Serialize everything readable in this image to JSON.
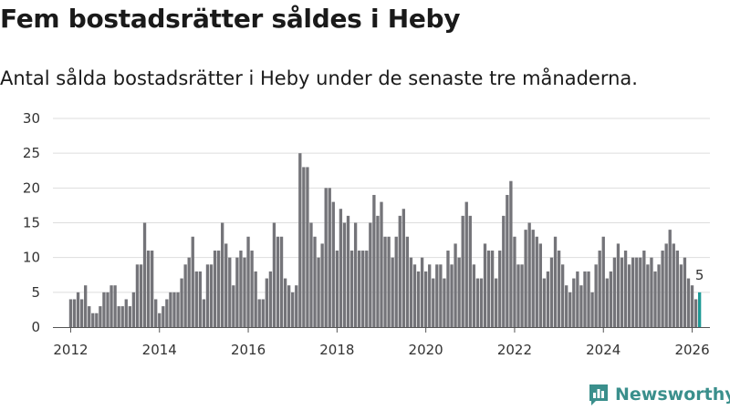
{
  "header": {
    "title": "Fem bostadsrätter såldes i Heby",
    "subtitle": "Antal sålda bostadsrätter i Heby under de senaste tre månaderna."
  },
  "brand": {
    "name": "Newsworthy",
    "icon": "newsworthy-logo-icon",
    "color": "#3a8f8c"
  },
  "colors": {
    "bar": "#747479",
    "highlight": "#1f9a96",
    "grid": "#dddddd",
    "axis": "#555555"
  },
  "chart_data": {
    "type": "bar",
    "title": "Fem bostadsrätter såldes i Heby",
    "xlabel": "",
    "ylabel": "",
    "ylim": [
      0,
      30
    ],
    "yticks": [
      0,
      5,
      10,
      15,
      20,
      25,
      30
    ],
    "xlim": [
      2011.6,
      2026.4
    ],
    "xticks": [
      2012,
      2014,
      2016,
      2018,
      2020,
      2022,
      2024,
      2026
    ],
    "grid": true,
    "x_start": "2012-01",
    "x_step": "month",
    "highlight_last": true,
    "last_value_label": "5",
    "values": [
      4,
      4,
      5,
      4,
      6,
      3,
      2,
      2,
      3,
      5,
      5,
      6,
      6,
      3,
      3,
      4,
      3,
      5,
      9,
      9,
      15,
      11,
      11,
      4,
      2,
      3,
      4,
      5,
      5,
      5,
      7,
      9,
      10,
      13,
      8,
      8,
      4,
      9,
      9,
      11,
      11,
      15,
      12,
      10,
      6,
      10,
      11,
      10,
      13,
      11,
      8,
      4,
      4,
      7,
      8,
      15,
      13,
      13,
      7,
      6,
      5,
      6,
      25,
      23,
      23,
      15,
      13,
      10,
      12,
      20,
      20,
      18,
      11,
      17,
      15,
      16,
      11,
      15,
      11,
      11,
      11,
      15,
      19,
      16,
      18,
      13,
      13,
      10,
      13,
      16,
      17,
      13,
      10,
      9,
      8,
      10,
      8,
      9,
      7,
      9,
      9,
      7,
      11,
      9,
      12,
      10,
      16,
      18,
      16,
      9,
      7,
      7,
      12,
      11,
      11,
      7,
      11,
      16,
      19,
      21,
      13,
      9,
      9,
      14,
      15,
      14,
      13,
      12,
      7,
      8,
      10,
      13,
      11,
      9,
      6,
      5,
      7,
      8,
      6,
      8,
      8,
      5,
      9,
      11,
      13,
      7,
      8,
      10,
      12,
      10,
      11,
      9,
      10,
      10,
      10,
      11,
      9,
      10,
      8,
      9,
      11,
      12,
      14,
      12,
      11,
      9,
      10,
      7,
      6,
      4,
      5
    ]
  }
}
